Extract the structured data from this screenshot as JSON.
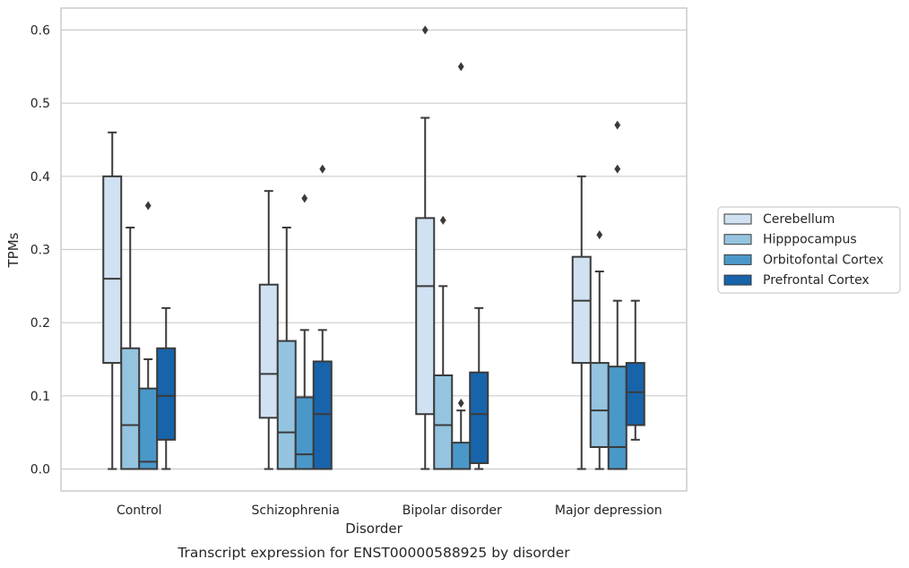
{
  "chart_data": {
    "type": "boxplot",
    "xlabel": "Disorder",
    "ylabel": "TPMs",
    "caption": "Transcript expression for ENST00000588925 by disorder",
    "ylim": [
      -0.03,
      0.63
    ],
    "yticks": [
      "0.0",
      "0.1",
      "0.2",
      "0.3",
      "0.4",
      "0.5",
      "0.6"
    ],
    "grid": "horizontal",
    "legend_position": "right",
    "categories": [
      "Control",
      "Schizophrenia",
      "Bipolar disorder",
      "Major depression"
    ],
    "series": [
      {
        "name": "Cerebellum",
        "color": "#d0e1f2",
        "boxes": [
          {
            "whislo": 0.0,
            "q1": 0.145,
            "med": 0.26,
            "q3": 0.4,
            "whishi": 0.46,
            "fliers": []
          },
          {
            "whislo": 0.0,
            "q1": 0.07,
            "med": 0.13,
            "q3": 0.252,
            "whishi": 0.38,
            "fliers": []
          },
          {
            "whislo": 0.0,
            "q1": 0.075,
            "med": 0.25,
            "q3": 0.343,
            "whishi": 0.48,
            "fliers": [
              0.6
            ]
          },
          {
            "whislo": 0.0,
            "q1": 0.145,
            "med": 0.23,
            "q3": 0.29,
            "whishi": 0.4,
            "fliers": []
          }
        ]
      },
      {
        "name": "Hipppocampus",
        "color": "#94c4df",
        "boxes": [
          {
            "whislo": 0.0,
            "q1": 0.0,
            "med": 0.06,
            "q3": 0.165,
            "whishi": 0.33,
            "fliers": []
          },
          {
            "whislo": 0.0,
            "q1": 0.0,
            "med": 0.05,
            "q3": 0.175,
            "whishi": 0.33,
            "fliers": []
          },
          {
            "whislo": 0.0,
            "q1": 0.0,
            "med": 0.06,
            "q3": 0.128,
            "whishi": 0.25,
            "fliers": [
              0.34
            ]
          },
          {
            "whislo": 0.0,
            "q1": 0.03,
            "med": 0.08,
            "q3": 0.145,
            "whishi": 0.27,
            "fliers": [
              0.32
            ]
          }
        ]
      },
      {
        "name": "Orbitofontal Cortex",
        "color": "#4a98c9",
        "boxes": [
          {
            "whislo": 0.0,
            "q1": 0.0,
            "med": 0.01,
            "q3": 0.11,
            "whishi": 0.15,
            "fliers": [
              0.36
            ]
          },
          {
            "whislo": 0.0,
            "q1": 0.0,
            "med": 0.02,
            "q3": 0.098,
            "whishi": 0.19,
            "fliers": [
              0.37
            ]
          },
          {
            "whislo": 0.0,
            "q1": 0.0,
            "med": 0.0,
            "q3": 0.036,
            "whishi": 0.08,
            "fliers": [
              0.09,
              0.55
            ]
          },
          {
            "whislo": 0.0,
            "q1": 0.0,
            "med": 0.03,
            "q3": 0.14,
            "whishi": 0.23,
            "fliers": [
              0.41,
              0.47
            ]
          }
        ]
      },
      {
        "name": "Prefrontal Cortex",
        "color": "#1764ab",
        "boxes": [
          {
            "whislo": 0.0,
            "q1": 0.04,
            "med": 0.1,
            "q3": 0.165,
            "whishi": 0.22,
            "fliers": []
          },
          {
            "whislo": 0.0,
            "q1": 0.0,
            "med": 0.075,
            "q3": 0.147,
            "whishi": 0.19,
            "fliers": [
              0.41
            ]
          },
          {
            "whislo": 0.0,
            "q1": 0.008,
            "med": 0.075,
            "q3": 0.132,
            "whishi": 0.22,
            "fliers": []
          },
          {
            "whislo": 0.04,
            "q1": 0.06,
            "med": 0.105,
            "q3": 0.145,
            "whishi": 0.23,
            "fliers": []
          }
        ]
      }
    ]
  }
}
